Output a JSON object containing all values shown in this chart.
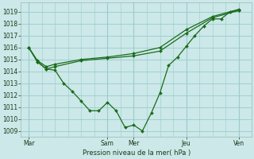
{
  "xlabel": "Pression niveau de la mer( hPa )",
  "ylim": [
    1008.5,
    1019.8
  ],
  "yticks": [
    1009,
    1010,
    1011,
    1012,
    1013,
    1014,
    1015,
    1016,
    1017,
    1018,
    1019
  ],
  "xtick_labels": [
    "Mar",
    "Sam",
    "Mer",
    "Jeu",
    "Ven"
  ],
  "xtick_positions": [
    0,
    3,
    4,
    6,
    8
  ],
  "background_color": "#cce8e8",
  "grid_color": "#99cccc",
  "line_color": "#1a6b1a",
  "line1_x": [
    0,
    0.33,
    0.67,
    1.0,
    1.33,
    1.67,
    2.0,
    2.33,
    2.67,
    3.0,
    3.33,
    3.67,
    4.0,
    4.33,
    4.67,
    5.0,
    5.33,
    5.67,
    6.0,
    6.33,
    6.67,
    7.0,
    7.33,
    7.67,
    8.0
  ],
  "line1_y": [
    1016.0,
    1014.8,
    1014.2,
    1014.1,
    1013.0,
    1012.3,
    1011.5,
    1010.7,
    1010.7,
    1011.4,
    1010.7,
    1009.3,
    1009.5,
    1009.0,
    1010.5,
    1012.2,
    1014.5,
    1015.2,
    1016.1,
    1017.0,
    1017.8,
    1018.4,
    1018.4,
    1019.0,
    1019.1
  ],
  "line2_x": [
    0,
    0.33,
    0.67,
    1.0,
    2.0,
    3.0,
    4.0,
    5.0,
    6.0,
    7.0,
    8.0
  ],
  "line2_y": [
    1016.0,
    1014.8,
    1014.2,
    1014.4,
    1014.9,
    1015.1,
    1015.3,
    1015.7,
    1017.2,
    1018.5,
    1019.1
  ],
  "line3_x": [
    0,
    0.33,
    0.67,
    1.0,
    2.0,
    3.0,
    4.0,
    5.0,
    6.0,
    7.0,
    8.0
  ],
  "line3_y": [
    1016.0,
    1014.9,
    1014.4,
    1014.6,
    1015.0,
    1015.2,
    1015.5,
    1016.0,
    1017.5,
    1018.6,
    1019.2
  ]
}
